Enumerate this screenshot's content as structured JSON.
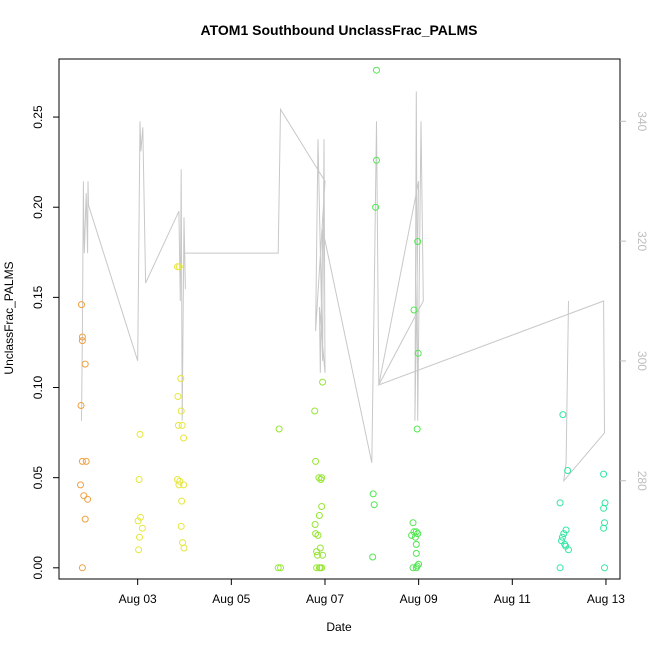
{
  "chart_data": {
    "type": "scatter",
    "title": "ATOM1 Southbound UnclassFrac_PALMS",
    "xlabel": "Date",
    "ylabel": "UnclassFrac_PALMS",
    "xlim": [
      1.32,
      13.3
    ],
    "ylim": [
      -0.0062,
      0.2822
    ],
    "x_ticks": [
      {
        "value": 3,
        "label": "Aug 03"
      },
      {
        "value": 5,
        "label": "Aug 05"
      },
      {
        "value": 7,
        "label": "Aug 07"
      },
      {
        "value": 9,
        "label": "Aug 09"
      },
      {
        "value": 11,
        "label": "Aug 11"
      },
      {
        "value": 13,
        "label": "Aug 13"
      }
    ],
    "y_ticks": [
      {
        "value": 0.0,
        "label": "0.00"
      },
      {
        "value": 0.05,
        "label": "0.05"
      },
      {
        "value": 0.1,
        "label": "0.10"
      },
      {
        "value": 0.15,
        "label": "0.15"
      },
      {
        "value": 0.2,
        "label": "0.20"
      },
      {
        "value": 0.25,
        "label": "0.25"
      }
    ],
    "y2_lim": [
      263.6,
      350.4
    ],
    "y2_ticks": [
      {
        "value": 280,
        "label": "280"
      },
      {
        "value": 300,
        "label": "300"
      },
      {
        "value": 320,
        "label": "320"
      },
      {
        "value": 340,
        "label": "340"
      }
    ],
    "grid": false,
    "point_groups": [
      {
        "color": "#F0A040",
        "points": [
          [
            1.8,
            0.146
          ],
          [
            1.82,
            0.128
          ],
          [
            1.82,
            0.126
          ],
          [
            1.88,
            0.113
          ],
          [
            1.79,
            0.09
          ],
          [
            1.82,
            0.059
          ],
          [
            1.9,
            0.059
          ],
          [
            1.78,
            0.046
          ],
          [
            1.85,
            0.04
          ],
          [
            1.93,
            0.038
          ],
          [
            1.88,
            0.027
          ],
          [
            1.82,
            0.0
          ]
        ]
      },
      {
        "color": "#E6E63C",
        "points": [
          [
            3.05,
            0.074
          ],
          [
            3.03,
            0.049
          ],
          [
            3.06,
            0.028
          ],
          [
            3.01,
            0.026
          ],
          [
            3.1,
            0.022
          ],
          [
            3.04,
            0.017
          ],
          [
            3.02,
            0.01
          ],
          [
            3.85,
            0.167
          ],
          [
            3.89,
            0.167
          ],
          [
            3.92,
            0.105
          ],
          [
            3.86,
            0.095
          ],
          [
            3.93,
            0.087
          ],
          [
            3.95,
            0.079
          ],
          [
            3.87,
            0.079
          ],
          [
            3.98,
            0.072
          ],
          [
            3.85,
            0.049
          ],
          [
            3.9,
            0.048
          ],
          [
            3.88,
            0.046
          ],
          [
            3.98,
            0.046
          ],
          [
            3.94,
            0.037
          ],
          [
            3.93,
            0.023
          ],
          [
            3.96,
            0.014
          ],
          [
            3.99,
            0.011
          ]
        ]
      },
      {
        "color": "#96E632",
        "points": [
          [
            6.02,
            0.077
          ],
          [
            6.0,
            0.0
          ],
          [
            6.05,
            0.0
          ],
          [
            6.78,
            0.087
          ],
          [
            6.8,
            0.059
          ],
          [
            6.95,
            0.103
          ],
          [
            6.87,
            0.05
          ],
          [
            6.93,
            0.05
          ],
          [
            6.91,
            0.049
          ],
          [
            6.93,
            0.034
          ],
          [
            6.88,
            0.029
          ],
          [
            6.79,
            0.024
          ],
          [
            6.8,
            0.019
          ],
          [
            6.85,
            0.018
          ],
          [
            6.9,
            0.011
          ],
          [
            6.82,
            0.009
          ],
          [
            6.95,
            0.007
          ],
          [
            6.84,
            0.007
          ],
          [
            6.82,
            0.0
          ],
          [
            6.88,
            0.0
          ],
          [
            6.9,
            0.0
          ],
          [
            6.93,
            0.0
          ]
        ]
      },
      {
        "color": "#50E650",
        "points": [
          [
            8.1,
            0.276
          ],
          [
            8.1,
            0.226
          ],
          [
            8.08,
            0.2
          ],
          [
            8.03,
            0.041
          ],
          [
            8.05,
            0.035
          ],
          [
            8.02,
            0.006
          ],
          [
            8.98,
            0.181
          ],
          [
            8.9,
            0.143
          ],
          [
            8.99,
            0.119
          ],
          [
            8.97,
            0.077
          ],
          [
            8.88,
            0.025
          ],
          [
            8.9,
            0.02
          ],
          [
            8.95,
            0.02
          ],
          [
            8.85,
            0.018
          ],
          [
            8.98,
            0.019
          ],
          [
            8.93,
            0.017
          ],
          [
            8.95,
            0.013
          ],
          [
            8.95,
            0.008
          ],
          [
            9.0,
            0.002
          ],
          [
            8.97,
            0.001
          ],
          [
            8.88,
            0.0
          ],
          [
            8.95,
            0.0
          ]
        ]
      },
      {
        "color": "#32E6A0",
        "points": [
          [
            12.08,
            0.085
          ],
          [
            12.18,
            0.054
          ],
          [
            12.02,
            0.036
          ],
          [
            12.15,
            0.021
          ],
          [
            12.1,
            0.019
          ],
          [
            12.07,
            0.017
          ],
          [
            12.05,
            0.015
          ],
          [
            12.12,
            0.013
          ],
          [
            12.14,
            0.012
          ],
          [
            12.2,
            0.01
          ],
          [
            12.02,
            0.0
          ],
          [
            12.95,
            0.052
          ],
          [
            12.98,
            0.036
          ],
          [
            12.95,
            0.033
          ],
          [
            12.97,
            0.025
          ],
          [
            12.95,
            0.022
          ],
          [
            12.97,
            0.0
          ]
        ]
      }
    ],
    "right_axis_series": {
      "color": "#c8c8c8",
      "x": [
        1.8,
        1.82,
        1.84,
        1.85,
        1.86,
        1.9,
        1.93,
        1.94,
        1.95,
        3.0,
        3.05,
        3.07,
        3.11,
        3.17,
        3.88,
        3.91,
        3.93,
        3.95,
        3.99,
        4.02,
        4.0,
        6.0,
        6.05,
        7.0,
        6.8,
        6.85,
        6.95,
        6.98,
        7.0,
        6.88,
        6.9,
        6.95,
        8.0,
        8.05,
        8.1,
        8.15,
        9.0,
        8.92,
        8.95,
        8.98,
        9.05,
        9.1,
        8.15,
        12.95,
        12.97,
        12.1,
        12.15,
        12.2
      ],
      "y": [
        290,
        305,
        330,
        323,
        318,
        328,
        318,
        330,
        326,
        300,
        340,
        335,
        339,
        313,
        325,
        310,
        332,
        290,
        324,
        312,
        318,
        318,
        342,
        330,
        305,
        337,
        300,
        337,
        298,
        309,
        298,
        322,
        283,
        311,
        340,
        296,
        330,
        290,
        345,
        290,
        340,
        310,
        296,
        310,
        288,
        280,
        283,
        310
      ]
    }
  }
}
